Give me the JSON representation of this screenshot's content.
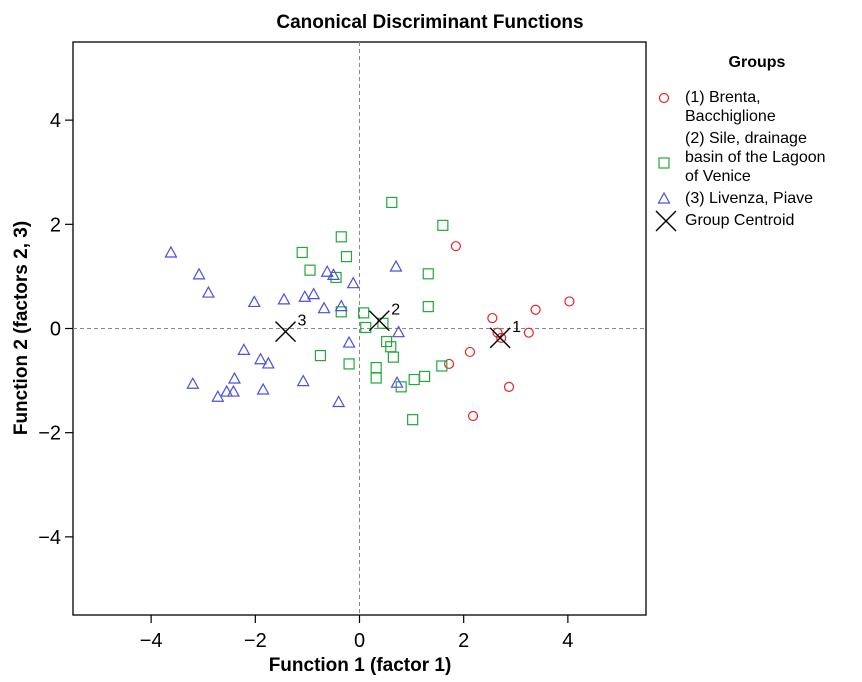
{
  "chart_data": {
    "type": "scatter",
    "title": "Canonical Discriminant Functions",
    "xlabel": "Function 1 (factor 1)",
    "ylabel": "Function 2 (factors 2, 3)",
    "xlim": [
      -5.5,
      5.5
    ],
    "ylim": [
      -5.5,
      5.5
    ],
    "xticks": [
      -4,
      -2,
      0,
      2,
      4
    ],
    "yticks": [
      -4,
      -2,
      0,
      2,
      4
    ],
    "grid": false,
    "reference_lines": {
      "x": 0,
      "y": 0,
      "style": "dashed"
    },
    "legend": {
      "title": "Groups",
      "placement": "right-top",
      "entries": [
        {
          "lines": [
            "(1) Brenta,",
            "Bacchiglione"
          ],
          "marker": "circle",
          "color": "#e8232a"
        },
        {
          "lines": [
            "(2) Sile, drainage",
            "basin of the Lagoon",
            "of Venice"
          ],
          "marker": "square",
          "color": "#22a83a"
        },
        {
          "lines": [
            "(3) Livenza, Piave"
          ],
          "marker": "triangle",
          "color": "#4a4fe0"
        },
        {
          "lines": [
            "Group Centroid"
          ],
          "marker": "x",
          "color": "#000000"
        }
      ]
    },
    "series": [
      {
        "marker": "circle",
        "color": "#e8232a",
        "x": [
          1.85,
          2.55,
          2.65,
          2.72,
          3.25,
          3.38,
          4.03,
          2.12,
          1.72,
          2.18,
          2.87
        ],
        "y": [
          1.58,
          0.2,
          -0.08,
          -0.18,
          -0.08,
          0.36,
          0.52,
          -0.45,
          -0.68,
          -1.68,
          -1.12
        ]
      },
      {
        "marker": "square",
        "color": "#22a83a",
        "x": [
          0.62,
          1.6,
          -1.1,
          -0.95,
          -0.35,
          -0.25,
          -0.45,
          -0.35,
          1.32,
          1.32,
          0.08,
          0.12,
          0.45,
          0.52,
          0.6,
          0.65,
          -0.75,
          -0.2,
          0.32,
          0.32,
          0.8,
          1.05,
          1.25,
          1.58,
          1.02
        ],
        "y": [
          2.42,
          1.98,
          1.46,
          1.12,
          1.76,
          1.38,
          0.98,
          0.32,
          1.05,
          0.42,
          0.3,
          0.02,
          0.1,
          -0.25,
          -0.35,
          -0.55,
          -0.52,
          -0.68,
          -0.75,
          -0.95,
          -1.12,
          -0.98,
          -0.92,
          -0.72,
          -1.75
        ]
      },
      {
        "marker": "triangle",
        "color": "#4a4fe0",
        "x": [
          -3.62,
          -3.08,
          -2.9,
          -2.02,
          -1.45,
          -1.05,
          -0.88,
          -0.62,
          -0.5,
          -0.12,
          -0.68,
          -0.35,
          0.7,
          0.75,
          -2.22,
          -1.9,
          -1.75,
          -2.4,
          -2.55,
          -2.42,
          -2.72,
          -1.85,
          -1.08,
          -3.2,
          -0.2,
          -0.4,
          0.72
        ],
        "y": [
          1.45,
          1.03,
          0.68,
          0.5,
          0.55,
          0.6,
          0.65,
          1.08,
          1.02,
          0.86,
          0.38,
          0.42,
          1.18,
          -0.08,
          -0.42,
          -0.6,
          -0.68,
          -0.97,
          -1.22,
          -1.22,
          -1.32,
          -1.18,
          -1.02,
          -1.07,
          -0.28,
          -1.42,
          -1.05
        ]
      },
      {
        "name": "Group Centroid",
        "marker": "x",
        "color": "#000000",
        "x": [
          2.7,
          0.38,
          -1.42
        ],
        "y": [
          -0.18,
          0.15,
          -0.06
        ],
        "labels": [
          "1",
          "2",
          "3"
        ]
      }
    ]
  }
}
